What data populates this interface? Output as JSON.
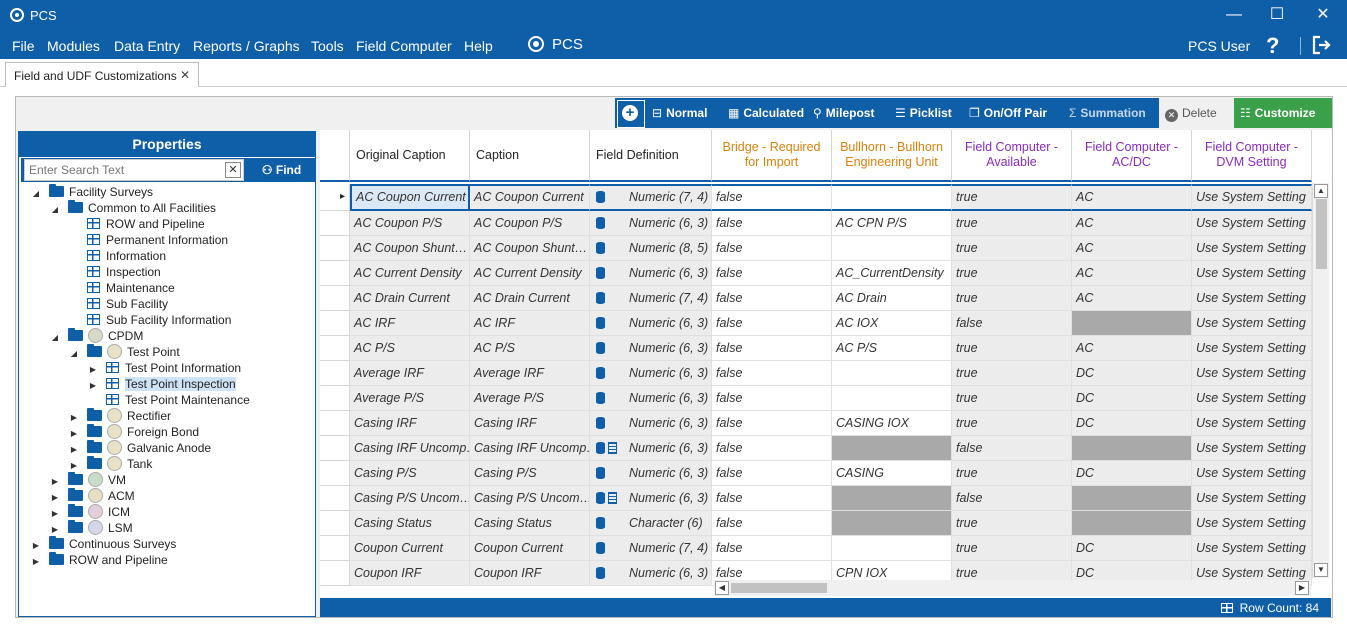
{
  "window": {
    "title": "PCS",
    "minimize": "—",
    "maximize": "☐",
    "close": "✕"
  },
  "menu": {
    "items": [
      "File",
      "Modules",
      "Data Entry",
      "Reports / Graphs",
      "Tools",
      "Field Computer",
      "Help"
    ],
    "center_title": "PCS",
    "user": "PCS User",
    "help_icon": "?"
  },
  "tab": {
    "label": "Field and UDF Customizations",
    "close": "✕"
  },
  "toolbar": {
    "normal": "Normal",
    "calculated": "Calculated",
    "milepost": "Milepost",
    "picklist": "Picklist",
    "onoff": "On/Off Pair",
    "summation": "Summation",
    "delete": "Delete",
    "customize": "Customize"
  },
  "properties": {
    "title": "Properties",
    "search_placeholder": "Enter Search Text",
    "find": "Find",
    "tree": [
      {
        "label": "Facility Surveys",
        "level": 0,
        "exp": "open",
        "icon": "folder-open"
      },
      {
        "label": "Common to All Facilities",
        "level": 1,
        "exp": "open",
        "icon": "folder-open"
      },
      {
        "label": "ROW and Pipeline",
        "level": 2,
        "exp": "",
        "icon": "grid"
      },
      {
        "label": "Permanent Information",
        "level": 2,
        "exp": "",
        "icon": "grid"
      },
      {
        "label": "Information",
        "level": 2,
        "exp": "",
        "icon": "grid"
      },
      {
        "label": "Inspection",
        "level": 2,
        "exp": "",
        "icon": "grid"
      },
      {
        "label": "Maintenance",
        "level": 2,
        "exp": "",
        "icon": "grid"
      },
      {
        "label": "Sub Facility",
        "level": 2,
        "exp": "",
        "icon": "grid"
      },
      {
        "label": "Sub Facility Information",
        "level": 2,
        "exp": "",
        "icon": "grid"
      },
      {
        "label": "CPDM",
        "level": 1,
        "exp": "open",
        "icon": "folder-circle",
        "circle": "#d9d9c8"
      },
      {
        "label": "Test Point",
        "level": 2,
        "exp": "open",
        "icon": "folder-circle",
        "circle": "#e8e3c8"
      },
      {
        "label": "Test Point Information",
        "level": 3,
        "exp": "closed",
        "icon": "grid"
      },
      {
        "label": "Test Point Inspection",
        "level": 3,
        "exp": "closed",
        "icon": "grid",
        "selected": true
      },
      {
        "label": "Test Point Maintenance",
        "level": 3,
        "exp": "",
        "icon": "grid"
      },
      {
        "label": "Rectifier",
        "level": 2,
        "exp": "closed",
        "icon": "folder-circle",
        "circle": "#e8e3c8"
      },
      {
        "label": "Foreign Bond",
        "level": 2,
        "exp": "closed",
        "icon": "folder-circle",
        "circle": "#e8e3c8"
      },
      {
        "label": "Galvanic Anode",
        "level": 2,
        "exp": "closed",
        "icon": "folder-circle",
        "circle": "#e8e3c8"
      },
      {
        "label": "Tank",
        "level": 2,
        "exp": "closed",
        "icon": "folder-circle",
        "circle": "#e8e3c8"
      },
      {
        "label": "VM",
        "level": 1,
        "exp": "closed",
        "icon": "folder-circle",
        "circle": "#c9dcc9"
      },
      {
        "label": "ACM",
        "level": 1,
        "exp": "closed",
        "icon": "folder-circle",
        "circle": "#e6dfc6"
      },
      {
        "label": "ICM",
        "level": 1,
        "exp": "closed",
        "icon": "folder-circle",
        "circle": "#e3cfd9"
      },
      {
        "label": "LSM",
        "level": 1,
        "exp": "closed",
        "icon": "folder-circle",
        "circle": "#d6d6ea"
      },
      {
        "label": "Continuous Surveys",
        "level": 0,
        "exp": "closed",
        "icon": "folder"
      },
      {
        "label": "ROW and Pipeline",
        "level": 0,
        "exp": "closed",
        "icon": "folder"
      }
    ]
  },
  "grid": {
    "columns": [
      {
        "label": "Original Caption",
        "color": "#222222",
        "align": "left"
      },
      {
        "label": "Caption",
        "color": "#222222",
        "align": "left"
      },
      {
        "label": "Field Definition",
        "color": "#222222",
        "align": "left"
      },
      {
        "label": "Bridge - Required for Import",
        "color": "#d9820b",
        "align": "center"
      },
      {
        "label": "Bullhorn - Bullhorn Engineering Unit",
        "color": "#d9820b",
        "align": "center"
      },
      {
        "label": "Field Computer - Available",
        "color": "#8b2bbf",
        "align": "center"
      },
      {
        "label": "Field Computer - AC/DC",
        "color": "#8b2bbf",
        "align": "center"
      },
      {
        "label": "Field Computer - DVM Setting",
        "color": "#8b2bbf",
        "align": "center"
      }
    ],
    "rows": [
      {
        "orig": "AC Coupon Current",
        "cap": "AC Coupon Current",
        "calc": false,
        "def": "Numeric (7, 4)",
        "bridge": "false",
        "bull": "",
        "bullDis": false,
        "avail": "true",
        "acdc": "AC",
        "acdcDis": false,
        "dvm": "Use System Setting"
      },
      {
        "orig": "AC Coupon P/S",
        "cap": "AC Coupon P/S",
        "calc": false,
        "def": "Numeric (6, 3)",
        "bridge": "false",
        "bull": "AC CPN P/S",
        "bullDis": false,
        "avail": "true",
        "acdc": "AC",
        "acdcDis": false,
        "dvm": "Use System Setting"
      },
      {
        "orig": "AC Coupon Shunt…",
        "cap": "AC Coupon Shunt…",
        "calc": false,
        "def": "Numeric (8, 5)",
        "bridge": "false",
        "bull": "",
        "bullDis": false,
        "avail": "true",
        "acdc": "AC",
        "acdcDis": false,
        "dvm": "Use System Setting"
      },
      {
        "orig": "AC Current Density",
        "cap": "AC Current Density",
        "calc": false,
        "def": "Numeric (6, 3)",
        "bridge": "false",
        "bull": "AC_CurrentDensity",
        "bullDis": false,
        "avail": "true",
        "acdc": "AC",
        "acdcDis": false,
        "dvm": "Use System Setting"
      },
      {
        "orig": "AC Drain Current",
        "cap": "AC Drain Current",
        "calc": false,
        "def": "Numeric (7, 4)",
        "bridge": "false",
        "bull": "AC Drain",
        "bullDis": false,
        "avail": "true",
        "acdc": "AC",
        "acdcDis": false,
        "dvm": "Use System Setting"
      },
      {
        "orig": "AC IRF",
        "cap": "AC IRF",
        "calc": false,
        "def": "Numeric (6, 3)",
        "bridge": "false",
        "bull": "AC IOX",
        "bullDis": false,
        "avail": "false",
        "acdc": "",
        "acdcDis": true,
        "dvm": "Use System Setting"
      },
      {
        "orig": "AC P/S",
        "cap": "AC P/S",
        "calc": false,
        "def": "Numeric (6, 3)",
        "bridge": "false",
        "bull": "AC P/S",
        "bullDis": false,
        "avail": "true",
        "acdc": "AC",
        "acdcDis": false,
        "dvm": "Use System Setting"
      },
      {
        "orig": "Average IRF",
        "cap": "Average IRF",
        "calc": false,
        "def": "Numeric (6, 3)",
        "bridge": "false",
        "bull": "",
        "bullDis": false,
        "avail": "true",
        "acdc": "DC",
        "acdcDis": false,
        "dvm": "Use System Setting"
      },
      {
        "orig": "Average P/S",
        "cap": "Average P/S",
        "calc": false,
        "def": "Numeric (6, 3)",
        "bridge": "false",
        "bull": "",
        "bullDis": false,
        "avail": "true",
        "acdc": "DC",
        "acdcDis": false,
        "dvm": "Use System Setting"
      },
      {
        "orig": "Casing IRF",
        "cap": "Casing IRF",
        "calc": false,
        "def": "Numeric (6, 3)",
        "bridge": "false",
        "bull": "CASING IOX",
        "bullDis": false,
        "avail": "true",
        "acdc": "DC",
        "acdcDis": false,
        "dvm": "Use System Setting"
      },
      {
        "orig": "Casing IRF Uncomp…",
        "cap": "Casing IRF Uncomp…",
        "calc": true,
        "def": "Numeric (6, 3)",
        "bridge": "false",
        "bull": "",
        "bullDis": true,
        "avail": "false",
        "acdc": "",
        "acdcDis": true,
        "dvm": "Use System Setting"
      },
      {
        "orig": "Casing P/S",
        "cap": "Casing P/S",
        "calc": false,
        "def": "Numeric (6, 3)",
        "bridge": "false",
        "bull": "CASING",
        "bullDis": false,
        "avail": "true",
        "acdc": "DC",
        "acdcDis": false,
        "dvm": "Use System Setting"
      },
      {
        "orig": "Casing P/S Uncom…",
        "cap": "Casing P/S Uncom…",
        "calc": true,
        "def": "Numeric (6, 3)",
        "bridge": "false",
        "bull": "",
        "bullDis": true,
        "avail": "false",
        "acdc": "",
        "acdcDis": true,
        "dvm": "Use System Setting"
      },
      {
        "orig": "Casing Status",
        "cap": "Casing Status",
        "calc": false,
        "def": "Character (6)",
        "bridge": "false",
        "bull": "",
        "bullDis": true,
        "avail": "true",
        "acdc": "",
        "acdcDis": true,
        "dvm": "Use System Setting"
      },
      {
        "orig": "Coupon Current",
        "cap": "Coupon Current",
        "calc": false,
        "def": "Numeric (7, 4)",
        "bridge": "false",
        "bull": "",
        "bullDis": false,
        "avail": "true",
        "acdc": "DC",
        "acdcDis": false,
        "dvm": "Use System Setting"
      },
      {
        "orig": "Coupon IRF",
        "cap": "Coupon IRF",
        "calc": false,
        "def": "Numeric (6, 3)",
        "bridge": "false",
        "bull": "CPN IOX",
        "bullDis": false,
        "avail": "true",
        "acdc": "DC",
        "acdcDis": false,
        "dvm": "Use System Setting"
      }
    ]
  },
  "status": {
    "row_count": "Row Count:  84"
  }
}
